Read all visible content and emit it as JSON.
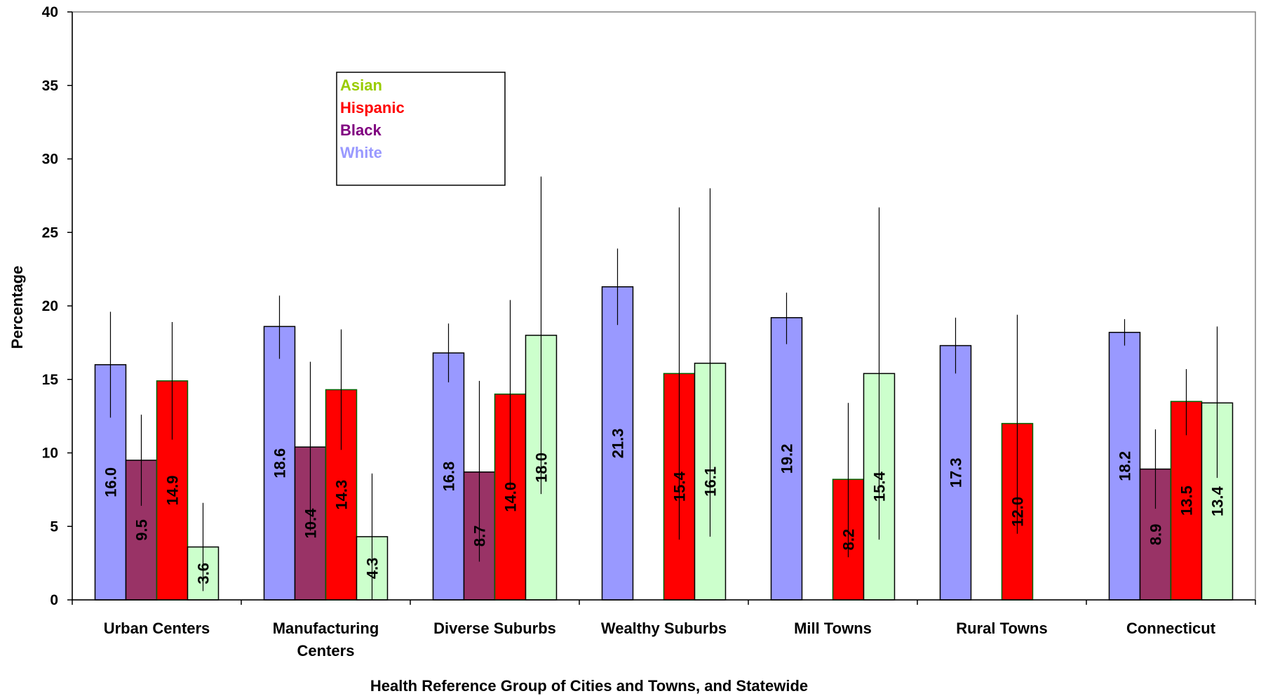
{
  "chart_data": {
    "type": "bar",
    "xlabel": "Health Reference Group of Cities and Towns, and Statewide",
    "ylabel": "Percentage",
    "ylim": [
      0,
      40
    ],
    "yticks": [
      "0",
      "5",
      "10",
      "15",
      "20",
      "25",
      "30",
      "35",
      "40"
    ],
    "categories": [
      [
        "Urban Centers"
      ],
      [
        "Manufacturing",
        "Centers"
      ],
      [
        "Diverse Suburbs"
      ],
      [
        "Wealthy Suburbs"
      ],
      [
        "Mill Towns"
      ],
      [
        "Rural Towns"
      ],
      [
        "Connecticut"
      ]
    ],
    "series": [
      {
        "name": "White",
        "color": "#9999ff",
        "values": [
          16.0,
          18.6,
          16.8,
          21.3,
          19.2,
          17.3,
          18.2
        ],
        "labels": [
          "16.0",
          "18.6",
          "16.8",
          "21.3",
          "19.2",
          "17.3",
          "18.2"
        ],
        "err_low": [
          12.4,
          16.4,
          14.8,
          18.7,
          17.4,
          15.4,
          17.3
        ],
        "err_high": [
          19.6,
          20.7,
          18.8,
          23.9,
          20.9,
          19.2,
          19.1
        ]
      },
      {
        "name": "Black",
        "color": "#993366",
        "values": [
          9.5,
          10.4,
          8.7,
          null,
          null,
          null,
          8.9
        ],
        "labels": [
          "9.5",
          "10.4",
          "8.7",
          "",
          "",
          "",
          "8.9"
        ],
        "err_low": [
          6.4,
          4.7,
          2.6,
          null,
          null,
          null,
          6.2
        ],
        "err_high": [
          12.6,
          16.2,
          14.9,
          null,
          null,
          null,
          11.6
        ]
      },
      {
        "name": "Hispanic",
        "color": "#ff0000",
        "values": [
          14.9,
          14.3,
          14.0,
          15.4,
          8.2,
          12.0,
          13.5
        ],
        "labels": [
          "14.9",
          "14.3",
          "14.0",
          "15.4",
          "8.2",
          "12.0",
          "13.5"
        ],
        "err_low": [
          10.9,
          10.2,
          7.6,
          4.1,
          2.9,
          4.5,
          11.2
        ],
        "err_high": [
          18.9,
          18.4,
          20.4,
          26.7,
          13.4,
          19.4,
          15.7
        ]
      },
      {
        "name": "Asian",
        "color": "#ccffcc",
        "values": [
          3.6,
          4.3,
          18.0,
          16.1,
          15.4,
          null,
          13.4
        ],
        "labels": [
          "3.6",
          "4.3",
          "18.0",
          "16.1",
          "15.4",
          "",
          "13.4"
        ],
        "err_low": [
          0.6,
          0.0,
          7.2,
          4.3,
          4.1,
          null,
          8.3
        ],
        "err_high": [
          6.6,
          8.6,
          28.8,
          28.0,
          26.7,
          null,
          18.6
        ]
      }
    ],
    "legend": {
      "placement": "top-left",
      "entries": [
        {
          "label": "Asian",
          "color": "#99cc00"
        },
        {
          "label": "Hispanic",
          "color": "#ff0000"
        },
        {
          "label": "Black",
          "color": "#800080"
        },
        {
          "label": "White",
          "color": "#9999ff"
        }
      ]
    },
    "grid": false
  }
}
